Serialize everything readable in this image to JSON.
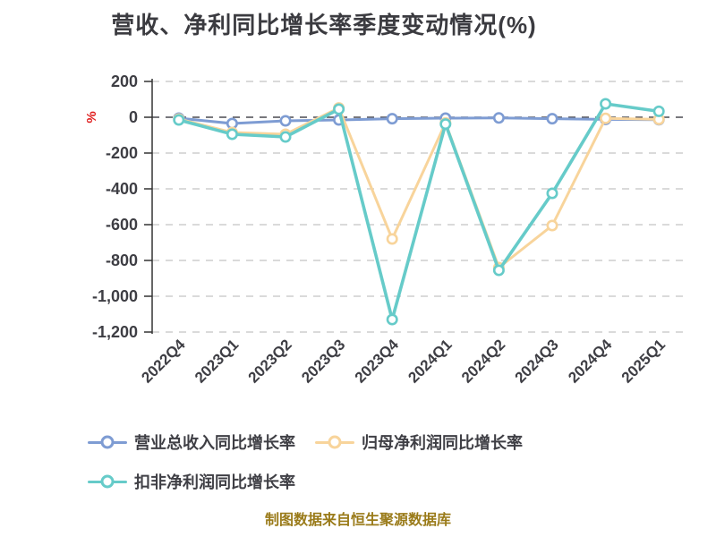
{
  "title": "营收、净利同比增长率季度变动情况(%)",
  "footer": "制图数据来自恒生聚源数据库",
  "y_axis": {
    "unit": "%",
    "tick_labels": [
      "200",
      "0",
      "-200",
      "-400",
      "-600",
      "-800",
      "-1,000",
      "-1,200"
    ],
    "tick_values": [
      200,
      0,
      -200,
      -400,
      -600,
      -800,
      -1000,
      -1200
    ]
  },
  "chart_data": {
    "type": "line",
    "title": "营收、净利同比增长率季度变动情况(%)",
    "categories": [
      "2022Q4",
      "2023Q1",
      "2023Q2",
      "2023Q3",
      "2023Q4",
      "2024Q1",
      "2024Q2",
      "2024Q3",
      "2024Q4",
      "2025Q1"
    ],
    "series": [
      {
        "name": "营业总收入同比增长率",
        "color": "#7e9cd3",
        "values": [
          -5,
          -35,
          -20,
          -15,
          -8,
          -5,
          -4,
          -8,
          -12,
          -14
        ]
      },
      {
        "name": "归母净利润同比增长率",
        "color": "#f8d49b",
        "values": [
          -10,
          -85,
          -95,
          52,
          -680,
          -32,
          -840,
          -605,
          -6,
          -12
        ]
      },
      {
        "name": "扣非净利润同比增长率",
        "color": "#66cbc9",
        "values": [
          -15,
          -95,
          -110,
          45,
          -1130,
          -38,
          -855,
          -425,
          75,
          33
        ]
      }
    ],
    "ylabel": "%",
    "ylim": [
      -1200,
      200
    ],
    "grid": true,
    "grid_style": "dashed",
    "legend_position": "bottom-left",
    "marker": "hollow-circle"
  },
  "colors": {
    "title_text": "#3b3b40",
    "axis_text": "#3e3e44",
    "grid_light": "#cdcdcd",
    "grid_zero": "#4a4a50",
    "axis_line": "#333333",
    "unit_label": "#e02020",
    "footer_text": "#9a7b1a",
    "background": "#ffffff"
  }
}
